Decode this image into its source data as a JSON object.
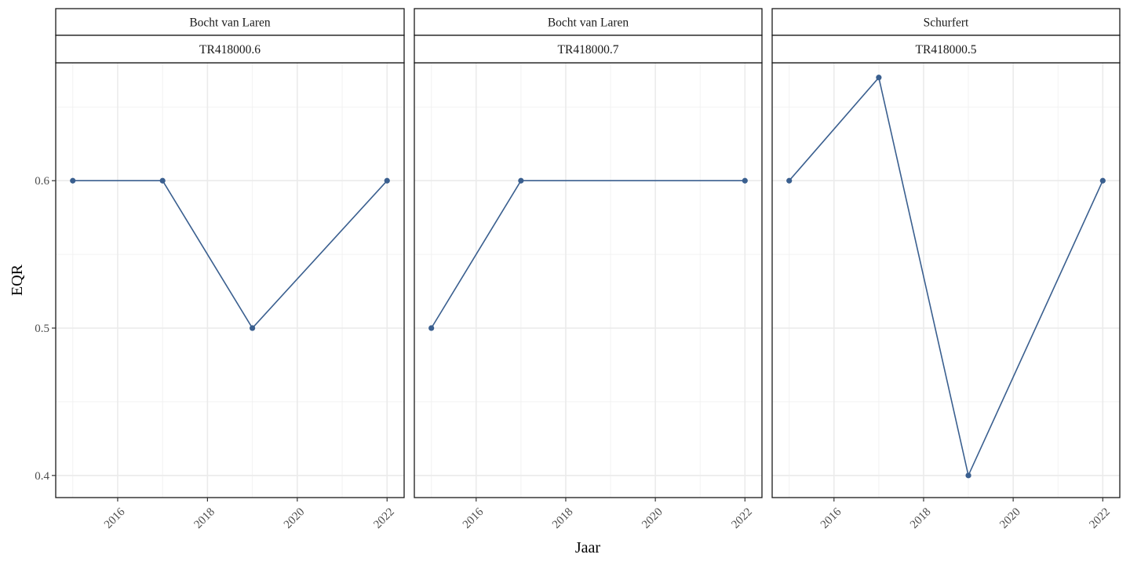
{
  "chart_data": {
    "type": "line",
    "xlabel": "Jaar",
    "ylabel": "EQR",
    "ylim": [
      0.385,
      0.68
    ],
    "xlim": [
      2014.62,
      2022.38
    ],
    "y_ticks": [
      0.4,
      0.5,
      0.6
    ],
    "y_tick_labels": [
      "0.4",
      "0.5",
      "0.6"
    ],
    "x_ticks": [
      2016,
      2018,
      2020,
      2022
    ],
    "x_tick_labels": [
      "2016",
      "2018",
      "2020",
      "2022"
    ],
    "grid": true,
    "line_color": "#3A5F8F",
    "panels": [
      {
        "strip_top": "Bocht van Laren",
        "strip_bottom": "TR418000.6",
        "x": [
          2015,
          2017,
          2019,
          2022
        ],
        "y": [
          0.6,
          0.6,
          0.5,
          0.6
        ]
      },
      {
        "strip_top": "Bocht van Laren",
        "strip_bottom": "TR418000.7",
        "x": [
          2015,
          2017,
          2022
        ],
        "y": [
          0.5,
          0.6,
          0.6
        ]
      },
      {
        "strip_top": "Schurfert",
        "strip_bottom": "TR418000.5",
        "x": [
          2015,
          2017,
          2019,
          2022
        ],
        "y": [
          0.6,
          0.67,
          0.4,
          0.6
        ]
      }
    ]
  }
}
